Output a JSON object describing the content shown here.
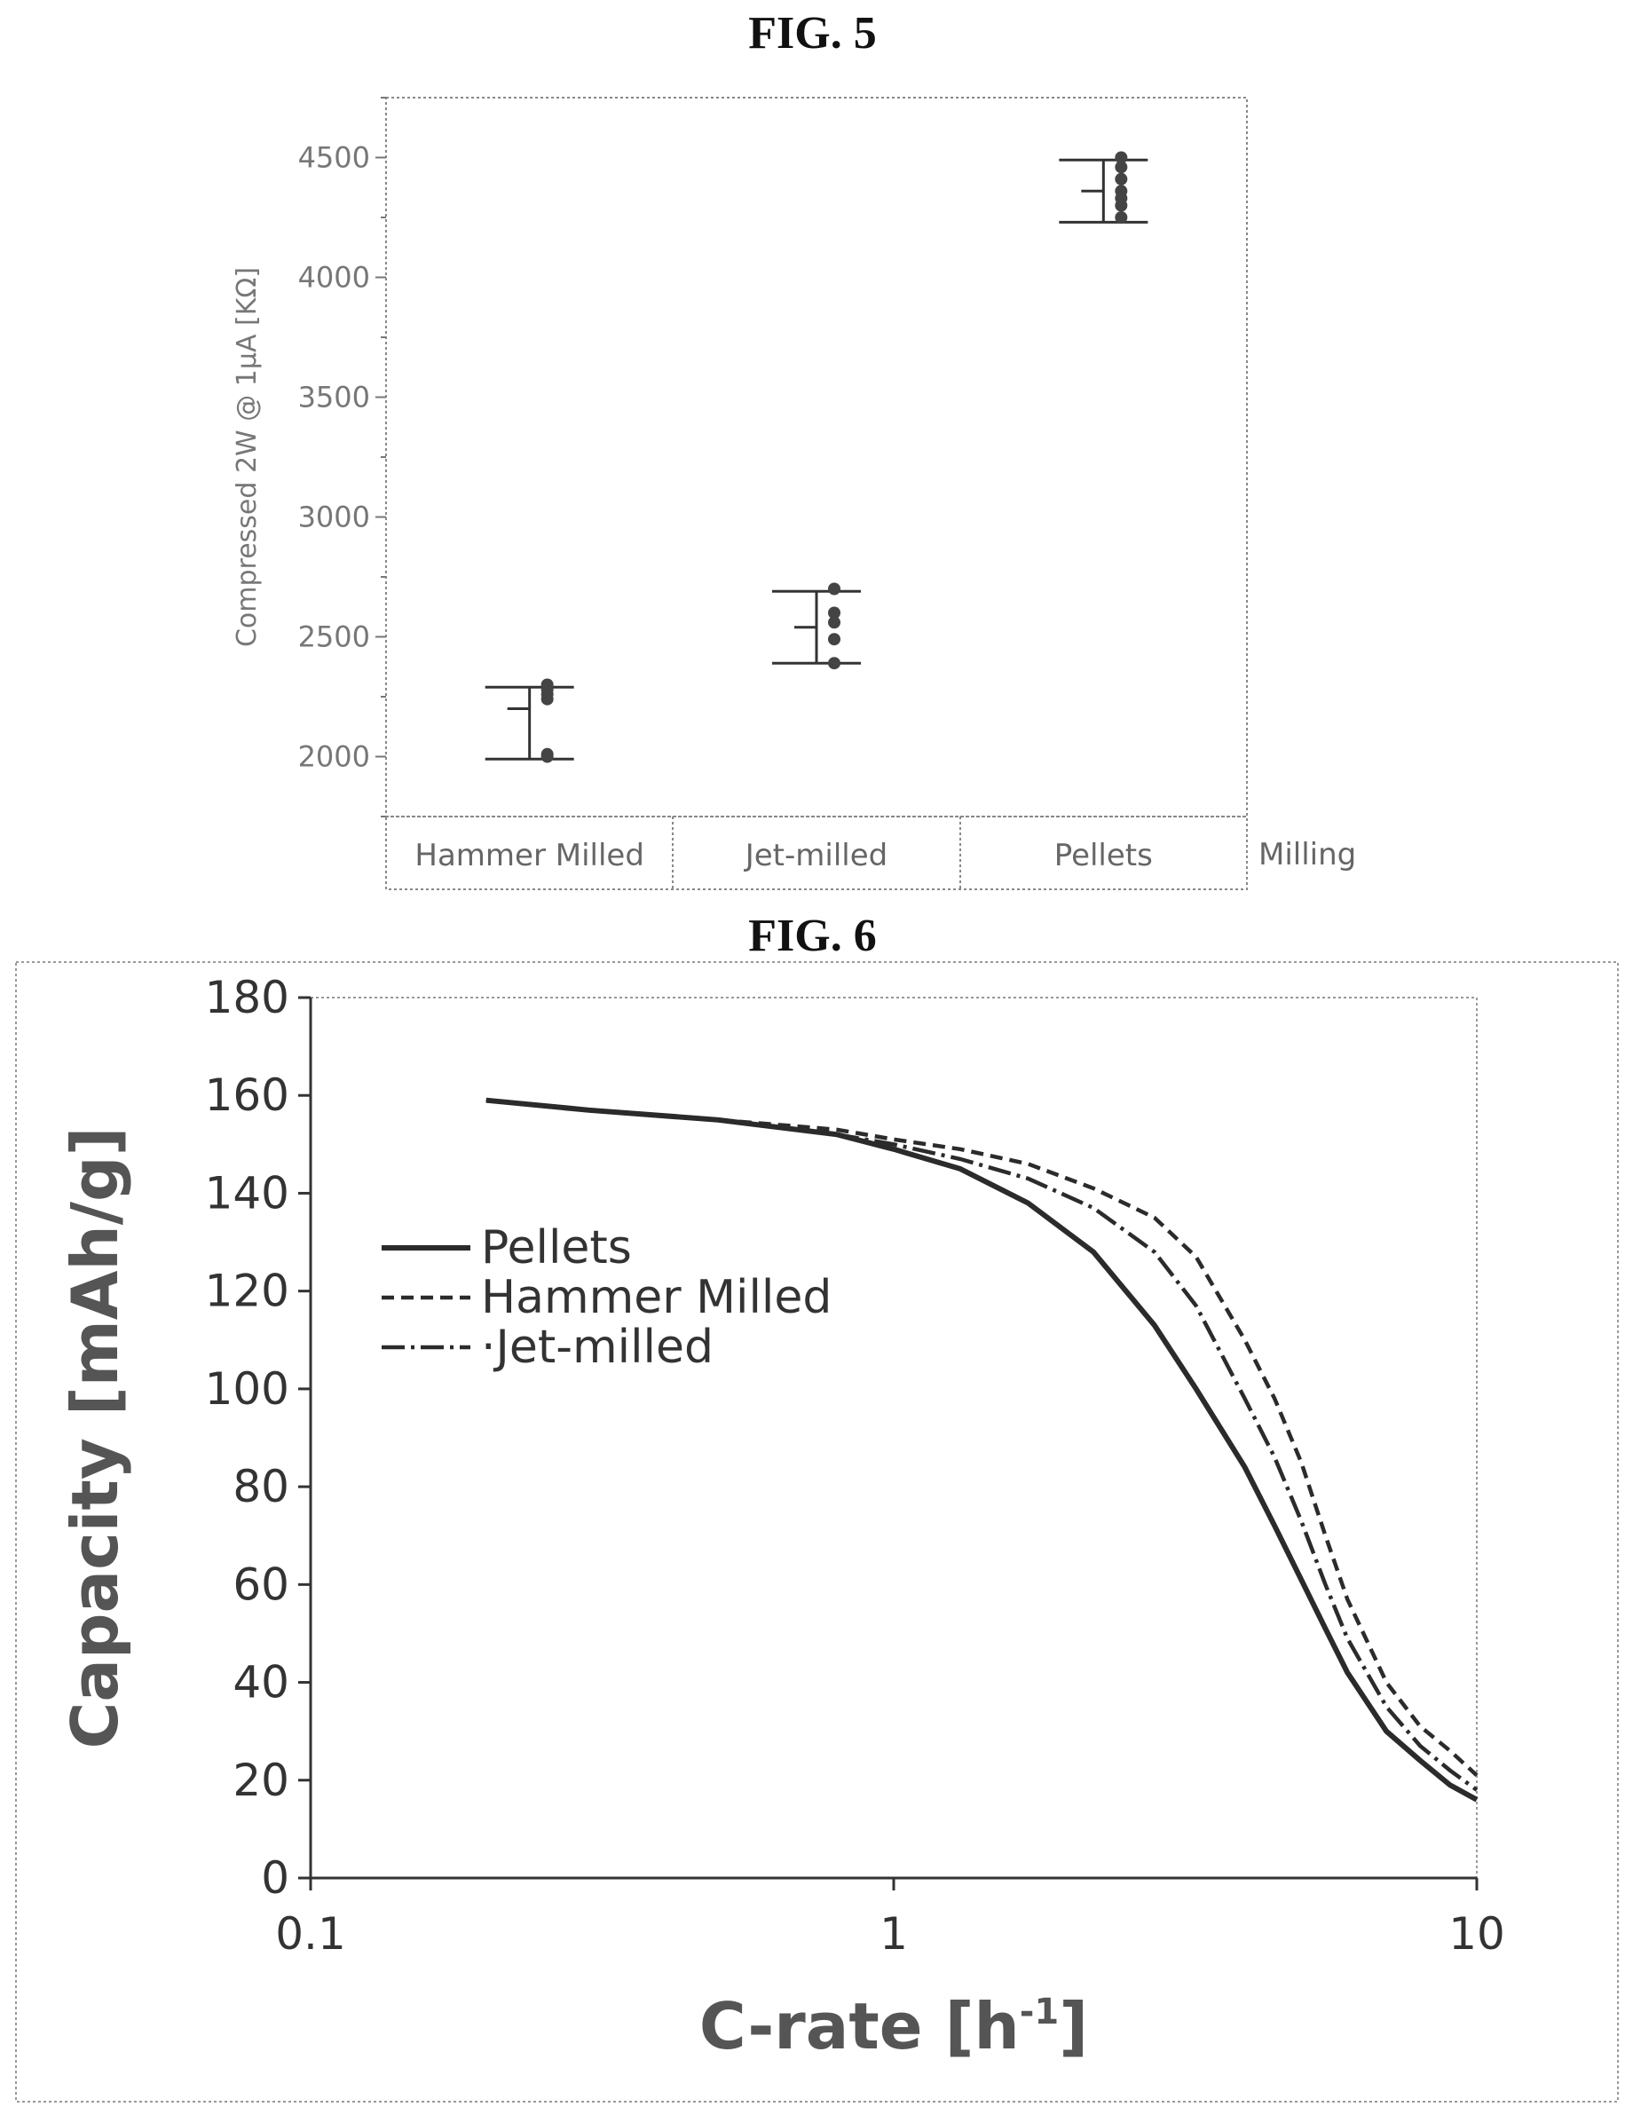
{
  "fig5": {
    "title": "FIG. 5",
    "chart_data": {
      "type": "scatter",
      "ylabel": "Compressed 2W @ 1μA [KΩ]",
      "xlabel": "Milling",
      "categories": [
        "Hammer Milled",
        "Jet-milled",
        "Pellets"
      ],
      "ylim": [
        1750,
        4750
      ],
      "yticks": [
        2000,
        2500,
        3000,
        3500,
        4000,
        4500
      ],
      "series": [
        {
          "category": "Hammer Milled",
          "points": [
            2000,
            2010,
            2240,
            2260,
            2280,
            2300
          ],
          "mean": 2200,
          "upper": 2290,
          "lower": 1990
        },
        {
          "category": "Jet-milled",
          "points": [
            2390,
            2490,
            2560,
            2600,
            2700
          ],
          "mean": 2540,
          "upper": 2690,
          "lower": 2390
        },
        {
          "category": "Pellets",
          "points": [
            4250,
            4300,
            4330,
            4360,
            4410,
            4460,
            4500
          ],
          "mean": 4360,
          "upper": 4490,
          "lower": 4230
        }
      ]
    }
  },
  "fig6": {
    "title": "FIG. 6",
    "chart_data": {
      "type": "line",
      "xlabel_main": "C-rate [h",
      "xlabel_sup": "-1",
      "xlabel_end": "]",
      "ylabel": "Capacity [mAh/g]",
      "xscale": "log",
      "xlim": [
        0.1,
        10
      ],
      "ylim": [
        0,
        180
      ],
      "xticks": [
        "0.1",
        "1",
        "10"
      ],
      "yticks": [
        "0",
        "20",
        "40",
        "60",
        "80",
        "100",
        "120",
        "140",
        "160",
        "180"
      ],
      "legend_position": "bottom-left",
      "series": [
        {
          "name": "Pellets",
          "style": "solid",
          "x": [
            0.2,
            0.3,
            0.5,
            0.8,
            1,
            1.3,
            1.7,
            2.2,
            2.8,
            3.3,
            4,
            4.5,
            5,
            5.5,
            6,
            7,
            8,
            9,
            10
          ],
          "y": [
            159,
            157,
            155,
            152,
            149,
            145,
            138,
            128,
            113,
            100,
            84,
            72,
            61,
            51,
            42,
            30,
            24,
            19,
            16
          ]
        },
        {
          "name": "Hammer Milled",
          "style": "dashed",
          "x": [
            0.2,
            0.3,
            0.5,
            0.8,
            1,
            1.3,
            1.7,
            2.2,
            2.8,
            3.3,
            4,
            4.5,
            5,
            5.5,
            6,
            7,
            8,
            9,
            10
          ],
          "y": [
            159,
            157,
            155,
            153,
            151,
            149,
            146,
            141,
            135,
            127,
            110,
            98,
            85,
            70,
            57,
            40,
            31,
            26,
            21
          ]
        },
        {
          "name": "Jet-milled",
          "style": "dashdot",
          "x": [
            0.2,
            0.3,
            0.5,
            0.8,
            1,
            1.3,
            1.7,
            2.2,
            2.8,
            3.3,
            4,
            4.5,
            5,
            5.5,
            6,
            7,
            8,
            9,
            10
          ],
          "y": [
            159,
            157,
            155,
            152,
            150,
            147,
            143,
            137,
            128,
            117,
            98,
            86,
            73,
            60,
            49,
            35,
            27,
            22,
            18
          ]
        }
      ],
      "legend_labels": [
        "Pellets",
        "Hammer Milled",
        "·Jet-milled"
      ]
    }
  }
}
